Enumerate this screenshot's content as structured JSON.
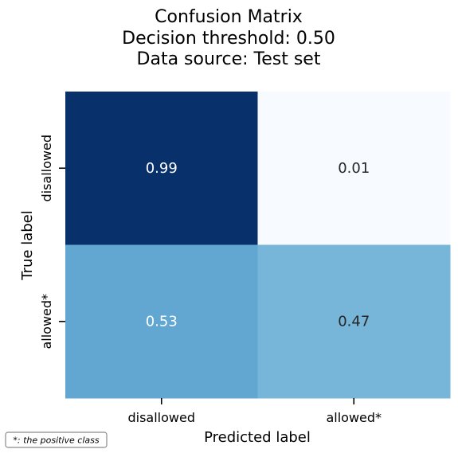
{
  "chart_data": {
    "type": "heatmap",
    "title": [
      "Confusion Matrix",
      "Decision threshold: 0.50",
      "Data source: Test set"
    ],
    "xlabel": "Predicted label",
    "ylabel": "True label",
    "x_categories": [
      "disallowed",
      "allowed*"
    ],
    "y_categories": [
      "disallowed",
      "allowed*"
    ],
    "values": [
      [
        0.99,
        0.01
      ],
      [
        0.53,
        0.47
      ]
    ],
    "value_labels": [
      [
        "0.99",
        "0.01"
      ],
      [
        "0.53",
        "0.47"
      ]
    ],
    "colormap": "Blues",
    "colorbar": false,
    "grid": false
  },
  "footnote": "*: the positive class"
}
